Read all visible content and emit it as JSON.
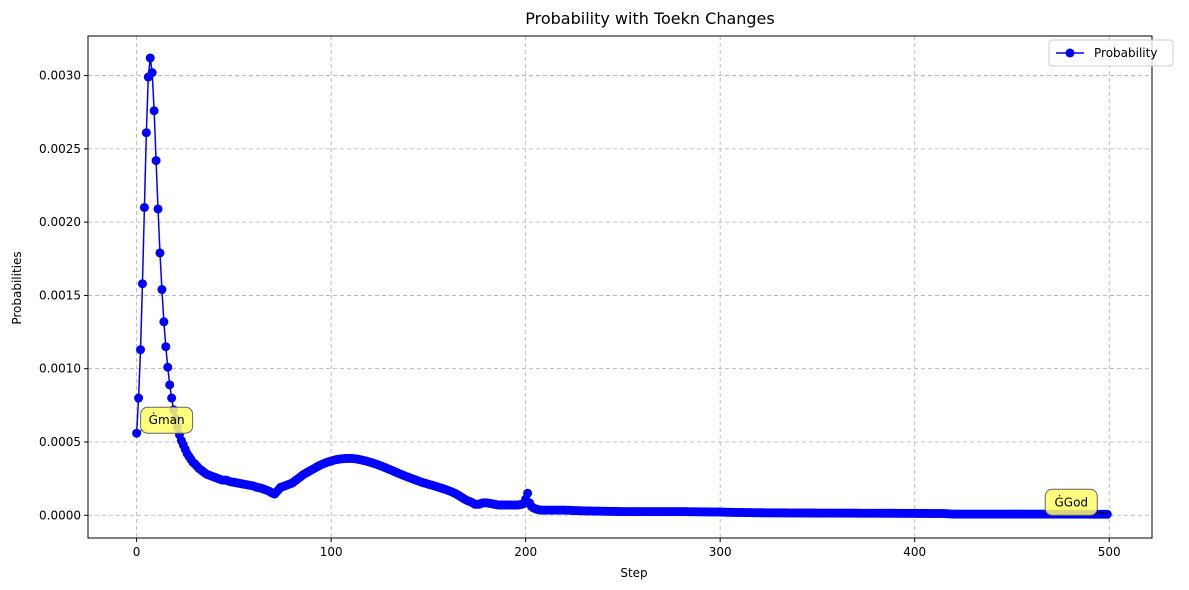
{
  "chart_data": {
    "type": "line",
    "title": "Probability with Toekn Changes",
    "xlabel": "Step",
    "ylabel": "Probabilities",
    "xlim": [
      -25,
      522
    ],
    "ylim": [
      -0.000155,
      0.00327
    ],
    "xticks": [
      0,
      100,
      200,
      300,
      400,
      500
    ],
    "xtick_labels": [
      "0",
      "100",
      "200",
      "300",
      "400",
      "500"
    ],
    "yticks": [
      0.0,
      0.0005,
      0.001,
      0.0015,
      0.002,
      0.0025,
      0.003
    ],
    "ytick_labels": [
      "0.0000",
      "0.0005",
      "0.0010",
      "0.0015",
      "0.0020",
      "0.0025",
      "0.0030"
    ],
    "grid": true,
    "legend_position": "top-right",
    "series_color": "#0000ff",
    "annotation_color": "#ffff66",
    "series": [
      {
        "name": "Probability",
        "x": [
          0,
          1,
          2,
          3,
          4,
          5,
          6,
          7,
          8,
          9,
          10,
          11,
          12,
          13,
          14,
          15,
          16,
          17,
          18,
          19,
          20,
          21,
          22,
          23,
          24,
          25,
          26,
          27,
          28,
          29,
          30,
          32,
          34,
          36,
          38,
          40,
          42,
          44,
          46,
          48,
          50,
          52,
          54,
          56,
          58,
          60,
          62,
          64,
          66,
          68,
          70,
          71,
          72,
          74,
          76,
          78,
          80,
          82,
          84,
          86,
          88,
          90,
          92,
          94,
          96,
          98,
          100,
          102,
          104,
          106,
          108,
          110,
          112,
          114,
          116,
          118,
          120,
          122,
          124,
          126,
          128,
          130,
          132,
          134,
          136,
          138,
          140,
          142,
          144,
          146,
          148,
          150,
          152,
          154,
          156,
          158,
          160,
          162,
          164,
          166,
          168,
          170,
          172,
          174,
          176,
          178,
          180,
          182,
          184,
          186,
          188,
          190,
          192,
          194,
          196,
          198,
          199,
          200,
          201,
          202,
          203,
          204,
          206,
          208,
          210,
          215,
          220,
          230,
          250,
          280,
          300,
          305,
          320,
          350,
          380,
          400,
          415,
          420,
          440,
          460,
          480,
          499
        ],
        "y": [
          0.00056,
          0.0008,
          0.00113,
          0.00158,
          0.0021,
          0.00261,
          0.00299,
          0.00312,
          0.00302,
          0.00276,
          0.00242,
          0.00209,
          0.00179,
          0.00154,
          0.00132,
          0.00115,
          0.00101,
          0.00089,
          0.0008,
          0.00072,
          0.00066,
          0.0006,
          0.00055,
          0.00051,
          0.00048,
          0.00045,
          0.00042,
          0.0004,
          0.00038,
          0.00036,
          0.00035,
          0.00032,
          0.0003,
          0.00028,
          0.00027,
          0.00026,
          0.00025,
          0.00024,
          0.00024,
          0.00023,
          0.000225,
          0.00022,
          0.000215,
          0.00021,
          0.000205,
          0.0002,
          0.00019,
          0.000185,
          0.000175,
          0.000165,
          0.00015,
          0.000145,
          0.00016,
          0.00019,
          0.0002,
          0.00021,
          0.00022,
          0.00024,
          0.00026,
          0.00028,
          0.000295,
          0.00031,
          0.000325,
          0.00034,
          0.000352,
          0.000362,
          0.00037,
          0.000378,
          0.000383,
          0.000386,
          0.000388,
          0.000388,
          0.000386,
          0.000382,
          0.000376,
          0.00037,
          0.000362,
          0.000354,
          0.000345,
          0.000335,
          0.000324,
          0.000313,
          0.000302,
          0.00029,
          0.000279,
          0.000268,
          0.000258,
          0.000248,
          0.000238,
          0.000228,
          0.00022,
          0.000212,
          0.000205,
          0.000197,
          0.000188,
          0.00018,
          0.00017,
          0.00016,
          0.000148,
          0.000132,
          0.000115,
          0.0001,
          9e-05,
          7.5e-05,
          7.5e-05,
          8.5e-05,
          8.5e-05,
          8e-05,
          7.5e-05,
          7e-05,
          7e-05,
          7e-05,
          7e-05,
          7e-05,
          7e-05,
          7.5e-05,
          8e-05,
          0.00011,
          0.00015,
          8.5e-05,
          6e-05,
          5e-05,
          4e-05,
          3.5e-05,
          3.5e-05,
          3.5e-05,
          3.5e-05,
          3e-05,
          2.5e-05,
          2.5e-05,
          2.2e-05,
          2e-05,
          1.7e-05,
          1.5e-05,
          1.4e-05,
          1.3e-05,
          1.2e-05,
          8e-06,
          8e-06,
          8e-06,
          8e-06,
          7e-06
        ]
      }
    ],
    "annotations": [
      {
        "text": "Ġman",
        "x": 0,
        "y": 0.00056
      },
      {
        "text": "ĠGod",
        "x": 499,
        "y": 7e-06
      }
    ]
  }
}
